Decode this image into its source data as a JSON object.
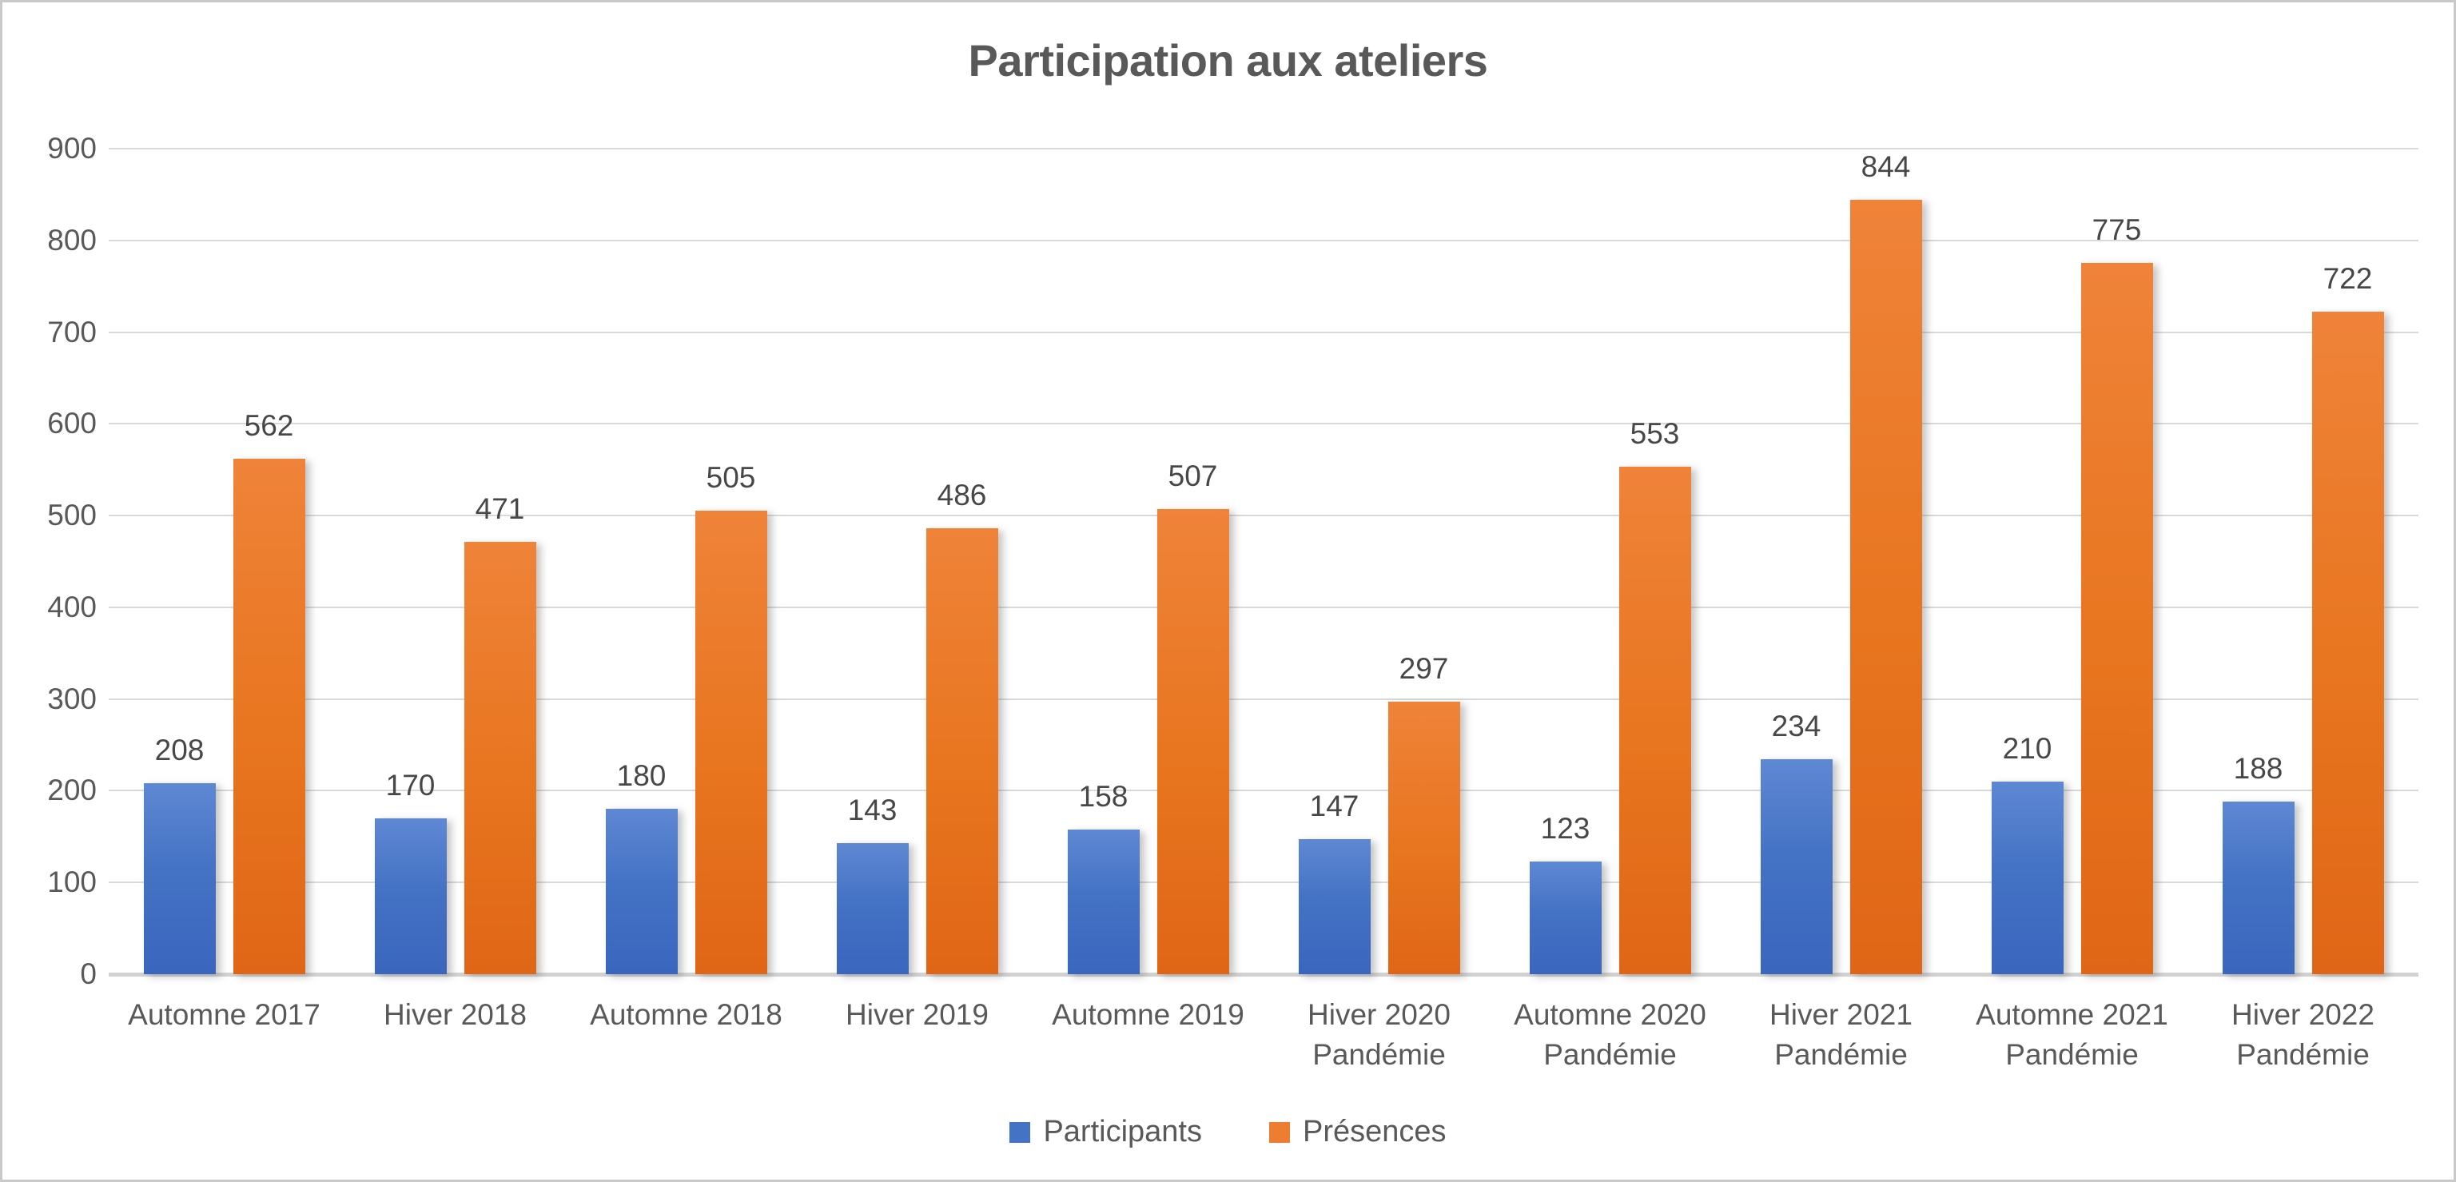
{
  "chart_data": {
    "type": "bar",
    "title": "Participation aux ateliers",
    "categories": [
      "Automne 2017",
      "Hiver 2018",
      "Automne 2018",
      "Hiver 2019",
      "Automne 2019",
      "Hiver 2020",
      "Automne 2020",
      "Hiver 2021",
      "Automne 2021",
      "Hiver 2022"
    ],
    "category_sublabels": [
      "",
      "",
      "",
      "",
      "",
      "Pandémie",
      "Pandémie",
      "Pandémie",
      "Pandémie",
      "Pandémie"
    ],
    "series": [
      {
        "name": "Participants",
        "color": "#4472C4",
        "values": [
          208,
          170,
          180,
          143,
          158,
          147,
          123,
          234,
          210,
          188
        ]
      },
      {
        "name": "Présences",
        "color": "#ED7D31",
        "values": [
          562,
          471,
          505,
          486,
          507,
          297,
          553,
          844,
          775,
          722
        ]
      }
    ],
    "xlabel": "",
    "ylabel": "",
    "ylim": [
      0,
      900
    ],
    "yticks": [
      0,
      100,
      200,
      300,
      400,
      500,
      600,
      700,
      800,
      900
    ],
    "grid": true,
    "legend_position": "bottom",
    "gridline_color": "#D9D9D9",
    "text_color": "#595959",
    "data_label_color": "#474747"
  }
}
